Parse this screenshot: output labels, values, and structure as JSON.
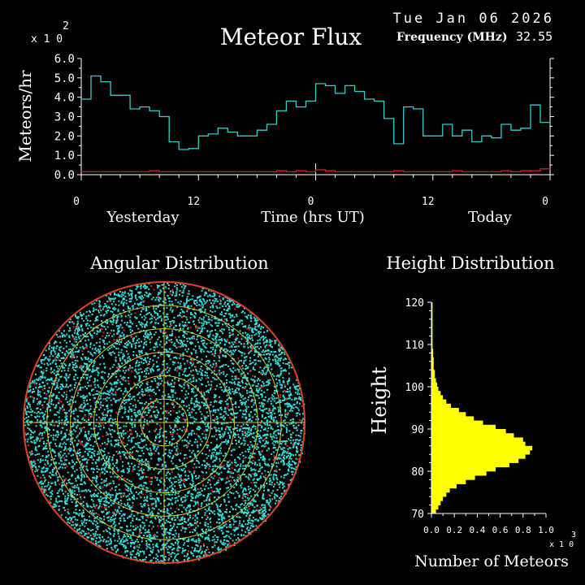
{
  "header": {
    "date": "Tue Jan 06 2026",
    "title": "Meteor Flux",
    "frequency_label": "Frequency (MHz)",
    "frequency_value": "32.55",
    "y_multiplier_base": "x 1 0",
    "y_multiplier_exp": "2"
  },
  "colors": {
    "background": "#000000",
    "axis": "#ffffff",
    "flux_line": "#33cccc",
    "baseline_line": "#cc2222",
    "dots_cyan": "#33e0e0",
    "dots_red": "#dd2222",
    "rings": "#cccc33",
    "outer_ring": "#dd4422",
    "histogram": "#ffff00"
  },
  "chart_data": [
    {
      "type": "line",
      "title": "Meteor Flux",
      "ylabel": "Meteors/hr",
      "xlabel": "Time (hrs UT)",
      "day_labels": [
        "Yesterday",
        "Today"
      ],
      "y_multiplier": "x 10^2",
      "ylim": [
        0,
        6
      ],
      "y_ticks": [
        "0.0",
        "1.0",
        "2.0",
        "3.0",
        "4.0",
        "5.0",
        "6.0"
      ],
      "x_range_hours": [
        0,
        48
      ],
      "x_ticks": [
        {
          "hour": 0,
          "label": "0"
        },
        {
          "hour": 12,
          "label": "12"
        },
        {
          "hour": 24,
          "label": "0"
        },
        {
          "hour": 36,
          "label": "12"
        },
        {
          "hour": 48,
          "label": "0"
        }
      ],
      "series": [
        {
          "color": "#33cccc",
          "step": true,
          "values": [
            3.9,
            5.1,
            4.8,
            4.1,
            4.1,
            3.4,
            3.5,
            3.3,
            3.0,
            1.7,
            1.3,
            1.35,
            2.0,
            2.1,
            2.4,
            2.2,
            2.0,
            2.0,
            2.3,
            2.6,
            3.3,
            3.8,
            3.5,
            3.8,
            4.7,
            4.6,
            4.2,
            4.6,
            4.3,
            3.9,
            3.8,
            2.9,
            1.6,
            3.5,
            3.4,
            2.0,
            2.0,
            2.6,
            2.0,
            2.3,
            1.7,
            2.0,
            1.9,
            2.6,
            2.3,
            2.4,
            3.6,
            2.7
          ]
        },
        {
          "color": "#cc2222",
          "step": true,
          "values": [
            0.15,
            0.15,
            0.15,
            0.15,
            0.15,
            0.15,
            0.15,
            0.2,
            0.15,
            0.15,
            0.15,
            0.15,
            0.15,
            0.15,
            0.15,
            0.15,
            0.15,
            0.15,
            0.15,
            0.15,
            0.2,
            0.15,
            0.2,
            0.15,
            0.25,
            0.2,
            0.15,
            0.15,
            0.15,
            0.15,
            0.15,
            0.15,
            0.2,
            0.15,
            0.15,
            0.15,
            0.15,
            0.15,
            0.2,
            0.15,
            0.15,
            0.15,
            0.15,
            0.2,
            0.15,
            0.2,
            0.2,
            0.3
          ]
        }
      ]
    },
    {
      "type": "scatter",
      "title": "Angular Distribution",
      "layout": "polar",
      "ring_count": 6
    },
    {
      "type": "bar",
      "title": "Height Distribution",
      "orientation": "horizontal",
      "ylabel": "Height",
      "xlabel": "Number of Meteors",
      "x_multiplier_base": "x 1 0",
      "x_multiplier_exp": "3",
      "ylim": [
        70,
        120
      ],
      "xlim": [
        0,
        1.0
      ],
      "y_ticks": [
        "70",
        "80",
        "90",
        "100",
        "110",
        "120"
      ],
      "x_ticks": [
        "0.0",
        "0.2",
        "0.4",
        "0.6",
        "0.8",
        "1.0"
      ],
      "bin_start": 70,
      "bin_width": 1,
      "values": [
        0.04,
        0.06,
        0.08,
        0.1,
        0.13,
        0.16,
        0.22,
        0.3,
        0.38,
        0.48,
        0.56,
        0.68,
        0.76,
        0.82,
        0.86,
        0.88,
        0.82,
        0.8,
        0.72,
        0.65,
        0.56,
        0.45,
        0.37,
        0.3,
        0.24,
        0.17,
        0.13,
        0.1,
        0.08,
        0.06,
        0.05,
        0.04,
        0.03,
        0.03,
        0.02,
        0.02,
        0.02,
        0.015,
        0.015,
        0.01,
        0.01,
        0.01,
        0.01,
        0.01,
        0.01,
        0.01,
        0.01,
        0.01,
        0.01,
        0.01
      ]
    }
  ]
}
